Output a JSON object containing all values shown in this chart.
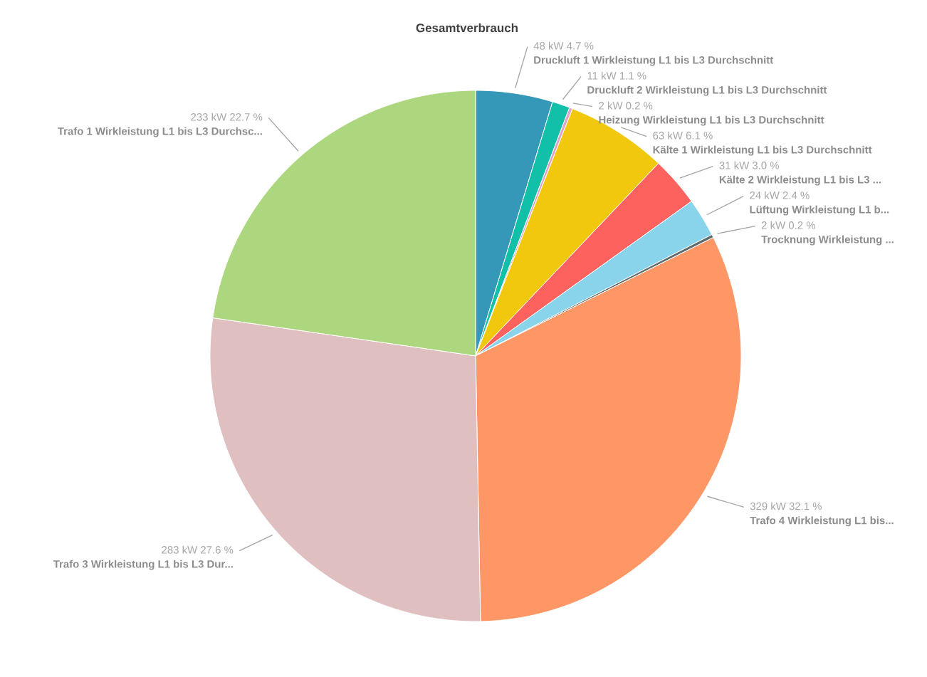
{
  "chart_data": {
    "type": "pie",
    "title": "Gesamtverbrauch",
    "categories": [
      "Druckluft 1 Wirkleistung L1 bis L3 Durchschnitt",
      "Druckluft 2 Wirkleistung L1 bis L3 Durchschnitt",
      "Heizung Wirkleistung L1 bis L3 Durchschnitt",
      "Kälte 1 Wirkleistung L1 bis L3 Durchschnitt",
      "Kälte 2 Wirkleistung L1 bis L3 ...",
      "Lüftung Wirkleistung L1 b...",
      "Trocknung Wirkleistung ...",
      "Trafo 4 Wirkleistung L1 bis...",
      "Trafo 3 Wirkleistung L1 bis L3 Dur...",
      "Trafo 1 Wirkleistung L1 bis L3 Durchsc..."
    ],
    "values": [
      48,
      11,
      2,
      63,
      31,
      24,
      2,
      329,
      283,
      233
    ],
    "value_labels": [
      "48 kW 4.7 %",
      "11 kW 1.1 %",
      "2 kW 0.2 %",
      "63 kW 6.1 %",
      "31 kW 3.0 %",
      "24 kW 2.4 %",
      "2 kW 0.2 %",
      "329 kW 32.1 %",
      "283 kW 27.6 %",
      "233 kW 22.7 %"
    ],
    "colors": [
      "#3598b8",
      "#12bfa8",
      "#e0a3c8",
      "#f2c80f",
      "#fd625e",
      "#8ad4eb",
      "#5f6b6d",
      "#fe9666",
      "#dfbfbf",
      "#acd77e"
    ]
  }
}
